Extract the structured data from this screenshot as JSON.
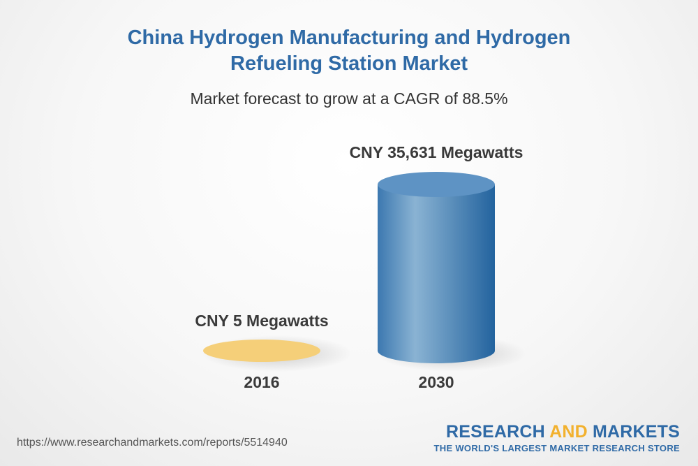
{
  "chart_data": {
    "type": "bar",
    "title_lines": [
      "China Hydrogen Manufacturing and Hydrogen",
      "Refueling Station Market"
    ],
    "subtitle": "Market forecast to grow at a CAGR of 88.5%",
    "categories": [
      "2016",
      "2030"
    ],
    "values": [
      5,
      35631
    ],
    "data_labels": [
      "CNY 5 Megawatts",
      "CNY 35,631 Megawatts"
    ],
    "colors": [
      "#f5cf79",
      "#4a86bb"
    ]
  },
  "footer": {
    "source_url": "https://www.researchandmarkets.com/reports/5514940",
    "brand_word1": "RESEARCH",
    "brand_word2": "AND",
    "brand_word3": "MARKETS",
    "brand_tagline": "THE WORLD'S LARGEST MARKET RESEARCH STORE"
  },
  "colors": {
    "title": "#2f6aa6",
    "brand_blue": "#2f6aa6",
    "brand_orange": "#f2b12e"
  }
}
